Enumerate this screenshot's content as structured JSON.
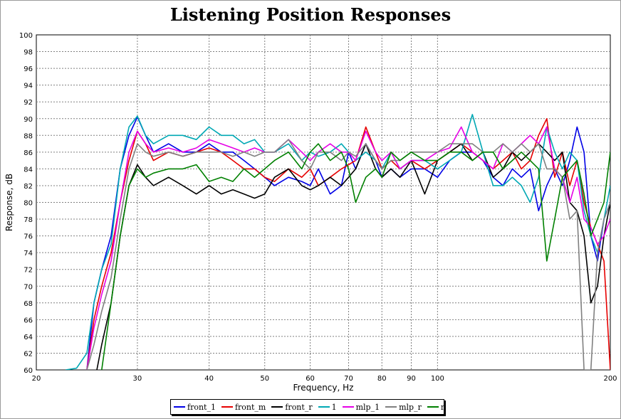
{
  "chart_data": {
    "type": "line",
    "title": "Listening Position Responses",
    "xlabel": "Frequency, Hz",
    "ylabel": "Response, dB",
    "xscale": "log",
    "xlim": [
      20,
      200
    ],
    "ylim": [
      60,
      100
    ],
    "xticks": [
      20,
      30,
      40,
      50,
      60,
      70,
      80,
      90,
      100,
      200
    ],
    "yticks": [
      60,
      62,
      64,
      66,
      68,
      70,
      72,
      74,
      76,
      78,
      80,
      82,
      84,
      86,
      88,
      90,
      92,
      94,
      96,
      98,
      100
    ],
    "grid": true,
    "legend_position": "bottom",
    "series": [
      {
        "name": "front_1",
        "color": "#0000e6",
        "x": [
          24.5,
          25.2,
          26,
          27,
          28,
          29,
          30,
          31,
          32,
          34,
          36,
          38,
          40,
          42,
          44,
          46,
          48,
          50,
          52,
          55,
          58,
          60,
          62,
          65,
          68,
          70,
          72,
          75,
          78,
          80,
          83,
          86,
          90,
          95,
          100,
          105,
          110,
          115,
          120,
          125,
          130,
          135,
          140,
          145,
          150,
          155,
          160,
          165,
          170,
          175,
          180,
          185,
          190,
          195,
          200
        ],
        "y": [
          60,
          68,
          72,
          76,
          84,
          88,
          90.2,
          88,
          86,
          87,
          86,
          86,
          87,
          86,
          86,
          85,
          84,
          83,
          82,
          83,
          82.5,
          82,
          84,
          81,
          82,
          86,
          84,
          87,
          85,
          83,
          84,
          83,
          84,
          84,
          83,
          85,
          86,
          86,
          85,
          83,
          82,
          84,
          83,
          84,
          79,
          82,
          84,
          82,
          85,
          89,
          86,
          76,
          73,
          78,
          80
        ]
      },
      {
        "name": "front_m",
        "color": "#e60000",
        "x": [
          24.5,
          25.2,
          26,
          27,
          28,
          29,
          30,
          31,
          32,
          34,
          36,
          38,
          40,
          42,
          44,
          46,
          48,
          50,
          52,
          55,
          58,
          60,
          62,
          65,
          68,
          70,
          72,
          75,
          78,
          80,
          83,
          86,
          90,
          95,
          100,
          105,
          110,
          115,
          120,
          125,
          130,
          135,
          140,
          145,
          150,
          155,
          160,
          165,
          170,
          175,
          180,
          185,
          190,
          195,
          200
        ],
        "y": [
          60,
          66,
          70,
          74,
          80,
          85,
          88.5,
          87,
          85,
          86,
          85.5,
          86,
          86.5,
          86,
          85,
          84,
          84,
          83,
          82.5,
          84,
          83,
          84,
          82,
          83,
          84,
          84.5,
          85,
          89,
          86,
          84,
          85,
          84,
          85,
          84,
          85,
          86,
          87,
          86,
          85,
          84,
          85,
          86,
          84,
          85,
          88,
          90,
          83,
          86,
          82,
          85,
          80,
          77,
          75,
          73,
          60
        ]
      },
      {
        "name": "front_r",
        "color": "#000000",
        "x": [
          25.5,
          26,
          27,
          28,
          29,
          30,
          31,
          32,
          34,
          36,
          38,
          40,
          42,
          44,
          46,
          48,
          50,
          52,
          55,
          58,
          60,
          62,
          65,
          68,
          70,
          72,
          75,
          78,
          80,
          83,
          86,
          90,
          95,
          100,
          105,
          110,
          115,
          120,
          125,
          130,
          135,
          140,
          145,
          150,
          155,
          160,
          165,
          170,
          175,
          180,
          185,
          190,
          195,
          200
        ],
        "y": [
          60,
          63,
          68,
          76,
          82,
          84.5,
          83,
          82,
          83,
          82,
          81,
          82,
          81,
          81.5,
          81,
          80.5,
          81,
          83,
          84,
          82,
          81.5,
          82,
          83,
          82,
          83,
          84,
          87,
          84,
          83,
          84,
          83,
          85,
          81,
          85,
          86,
          87,
          85,
          86,
          83,
          84,
          86,
          85,
          86,
          87,
          86,
          85,
          86,
          80,
          79,
          76,
          68,
          70,
          76,
          80
        ]
      },
      {
        "name": "1",
        "color": "#00a8b4",
        "x": [
          22.5,
          23.5,
          24.5,
          25.2,
          26,
          27,
          28,
          29,
          30,
          31,
          32,
          34,
          36,
          38,
          40,
          42,
          44,
          46,
          48,
          50,
          52,
          55,
          58,
          60,
          62,
          65,
          68,
          70,
          72,
          75,
          78,
          80,
          83,
          86,
          90,
          95,
          100,
          105,
          110,
          115,
          120,
          125,
          130,
          135,
          140,
          145,
          150,
          155,
          160,
          165,
          170,
          175,
          180,
          185,
          190,
          195,
          200
        ],
        "y": [
          60,
          60.2,
          62,
          68,
          72,
          75,
          84,
          89,
          90.3,
          88,
          87,
          88,
          88,
          87.5,
          89,
          88,
          88,
          87,
          87.5,
          86,
          86,
          87,
          85,
          86,
          85.5,
          86,
          87,
          86,
          85,
          86,
          85,
          84,
          86,
          84,
          85,
          85,
          84,
          85,
          86,
          90.5,
          86,
          82,
          82,
          83,
          82,
          80,
          83,
          89,
          86,
          84,
          86,
          85,
          79,
          76,
          74,
          78,
          82
        ]
      },
      {
        "name": "mlp_1",
        "color": "#e600e6",
        "x": [
          24.5,
          25.2,
          26,
          27,
          28,
          29,
          30,
          31,
          32,
          34,
          36,
          38,
          40,
          42,
          44,
          46,
          48,
          50,
          52,
          55,
          58,
          60,
          62,
          65,
          68,
          70,
          72,
          75,
          78,
          80,
          83,
          86,
          90,
          95,
          100,
          105,
          110,
          115,
          120,
          125,
          130,
          135,
          140,
          145,
          150,
          155,
          160,
          165,
          170,
          175,
          180,
          185,
          190,
          195,
          200
        ],
        "y": [
          60,
          65,
          69,
          73,
          80,
          86,
          88.5,
          87,
          86,
          86.5,
          86,
          86.5,
          87.5,
          87,
          86.5,
          86,
          86.5,
          86,
          86,
          87.5,
          86,
          85,
          86,
          87,
          86,
          86,
          85,
          88.5,
          86,
          85,
          86,
          84,
          85,
          85,
          86,
          86.5,
          89,
          86,
          85,
          84,
          87,
          86,
          87,
          88,
          87,
          89,
          84,
          83,
          80,
          83,
          78,
          77,
          75,
          76,
          78
        ]
      },
      {
        "name": "mlp_r",
        "color": "#808080",
        "x": [
          24.5,
          25.2,
          26,
          27,
          28,
          29,
          30,
          31,
          32,
          34,
          36,
          38,
          40,
          42,
          44,
          46,
          48,
          50,
          52,
          55,
          58,
          60,
          62,
          65,
          68,
          70,
          72,
          75,
          78,
          80,
          83,
          86,
          90,
          95,
          100,
          105,
          110,
          115,
          120,
          125,
          130,
          135,
          140,
          145,
          150,
          155,
          160,
          165,
          170,
          175,
          180,
          185,
          190,
          195,
          200
        ],
        "y": [
          60,
          63,
          67,
          71,
          78,
          84,
          87,
          86,
          85.5,
          86,
          85.5,
          86,
          86,
          86,
          85.5,
          86,
          85.5,
          86,
          86,
          87.5,
          85,
          84,
          86,
          86,
          85,
          86,
          85.5,
          87,
          85,
          84,
          85,
          85,
          86,
          86,
          86,
          87,
          87,
          87,
          86,
          86,
          87,
          86,
          87,
          86,
          87,
          84,
          84,
          83,
          78,
          79,
          60,
          60,
          74,
          78,
          80
        ]
      },
      {
        "name": "r",
        "color": "#008000",
        "x": [
          26,
          27,
          28,
          29,
          30,
          31,
          32,
          34,
          36,
          38,
          40,
          42,
          44,
          46,
          48,
          50,
          52,
          55,
          58,
          60,
          62,
          65,
          68,
          70,
          72,
          75,
          78,
          80,
          83,
          86,
          90,
          95,
          100,
          105,
          110,
          115,
          120,
          125,
          130,
          135,
          140,
          145,
          150,
          155,
          160,
          165,
          170,
          175,
          180,
          185,
          190,
          195,
          200
        ],
        "y": [
          60,
          68,
          76,
          82,
          84,
          83,
          83.5,
          84,
          84,
          84.5,
          82.5,
          83,
          82.5,
          84,
          83,
          84,
          85,
          86,
          84,
          86,
          87,
          85,
          86,
          84,
          80,
          83,
          84,
          83,
          86,
          85,
          86,
          85,
          85,
          86,
          86,
          85,
          86,
          86,
          84,
          85,
          86,
          85,
          84,
          73,
          78,
          83,
          84,
          85,
          81,
          76,
          78,
          80,
          86
        ]
      }
    ]
  }
}
